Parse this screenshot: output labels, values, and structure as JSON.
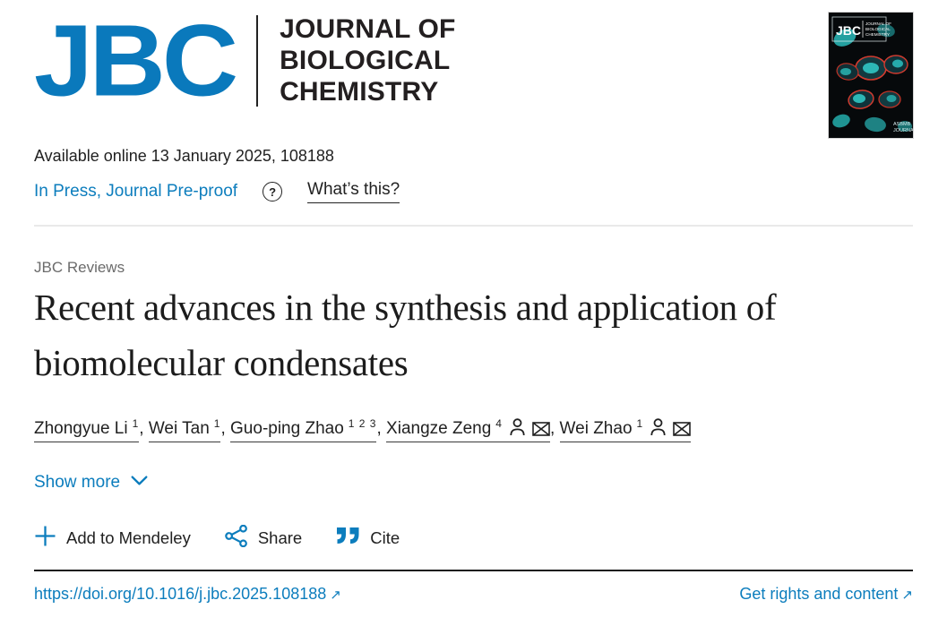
{
  "brand": {
    "logo_acronym": "JBC",
    "logo_name_lines": [
      "JOURNAL OF",
      "BIOLOGICAL",
      "CHEMISTRY"
    ],
    "cover": {
      "acronym": "JBC",
      "publisher_line1": "ASBMB",
      "publisher_line2": "JOURNAL"
    },
    "colors": {
      "jbc_blue": "#0a79bc",
      "link_blue": "#0c7dbd"
    }
  },
  "meta": {
    "available_online": "Available online 13 January 2025, 108188",
    "status_link": "In Press, Journal Pre-proof",
    "help_icon_glyph": "?",
    "whats_this": "What’s this?"
  },
  "article": {
    "type_label": "JBC Reviews",
    "title": "Recent advances in the synthesis and application of biomolecular condensates",
    "show_more_label": "Show more"
  },
  "authors": [
    {
      "name": "Zhongyue Li",
      "sup": "1",
      "icons": []
    },
    {
      "name": "Wei Tan",
      "sup": "1",
      "icons": []
    },
    {
      "name": "Guo-ping Zhao",
      "sup": "1 2 3",
      "icons": []
    },
    {
      "name": "Xiangze Zeng",
      "sup": "4",
      "icons": [
        "person-icon",
        "email-icon"
      ]
    },
    {
      "name": "Wei Zhao",
      "sup": "1",
      "icons": [
        "person-icon",
        "email-icon"
      ]
    }
  ],
  "actions": {
    "add_to_mendeley": "Add to Mendeley",
    "share": "Share",
    "cite": "Cite"
  },
  "footer": {
    "doi": "https://doi.org/10.1016/j.jbc.2025.108188",
    "rights": "Get rights and content",
    "external_arrow": "↗"
  }
}
